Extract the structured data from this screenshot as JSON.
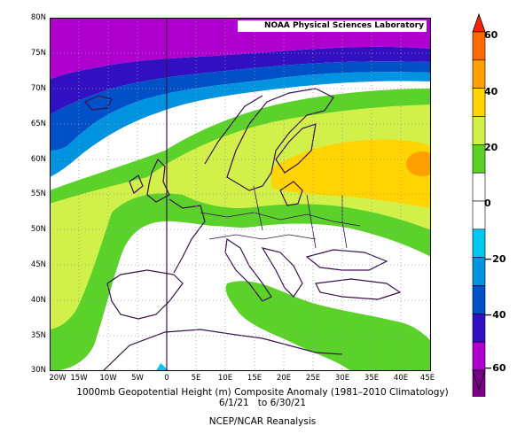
{
  "credit": "NOAA Physical Sciences Laboratory",
  "lat_labels": [
    "80N",
    "75N",
    "70N",
    "65N",
    "60N",
    "55N",
    "50N",
    "45N",
    "40N",
    "35N",
    "30N"
  ],
  "lon_labels": [
    "20W",
    "15W",
    "10W",
    "5W",
    "0",
    "5E",
    "10E",
    "15E",
    "20E",
    "25E",
    "30E",
    "35E",
    "40E",
    "45E"
  ],
  "caption": {
    "line1": "1000mb Geopotential Height (m) Composite Anomaly (1981–2010 Climatology)",
    "line2": "6/1/21   to 6/30/21",
    "line3": "NCEP/NCAR Reanalysis"
  },
  "colorbar": {
    "labels": [
      "60",
      "40",
      "20",
      "0",
      "−20",
      "−40",
      "−60"
    ],
    "colors": [
      "#ff2000",
      "#ff6a00",
      "#ffa000",
      "#ffd400",
      "#d2f04a",
      "#5ad22a",
      "#ffffff",
      "#ffffff",
      "#00c8f0",
      "#0094e0",
      "#0050c8",
      "#3010c0",
      "#b000d0",
      "#7a008a"
    ]
  },
  "map_data": {
    "region": "Europe / North Atlantic",
    "lat_range": [
      30,
      80
    ],
    "lon_range": [
      -20,
      45
    ],
    "field": "1000mb geopotential height anomaly (m)",
    "features": [
      {
        "type": "negative anomaly",
        "location": "North Atlantic / Arctic north of 65N",
        "min_value": -40
      },
      {
        "type": "positive anomaly",
        "location": "Scandinavia / western Russia",
        "max_value": 30
      }
    ]
  }
}
